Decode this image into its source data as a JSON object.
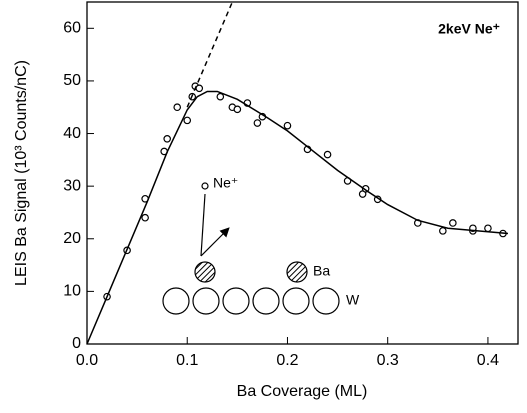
{
  "chart_data": {
    "type": "scatter",
    "x_label": "Ba Coverage (ML)",
    "y_label": "LEIS Ba Signal (10³ Counts/nC)",
    "annotations": [
      "2keV Ne⁺",
      "Ne⁺",
      "Ba",
      "W"
    ],
    "xlim": [
      0,
      0.43
    ],
    "xticks": [
      {
        "value": 0,
        "label": "0.0"
      },
      0.1,
      0.2,
      0.3,
      0.4
    ],
    "ylim": [
      0,
      65
    ],
    "yticks": [
      0,
      10,
      20,
      30,
      40,
      50,
      60
    ],
    "color": "#000000",
    "series": [
      {
        "style": "markers",
        "x": [
          0.02,
          0.04,
          0.058,
          0.058,
          0.077,
          0.08,
          0.09,
          0.1,
          0.105,
          0.108,
          0.112,
          0.133,
          0.145,
          0.15,
          0.16,
          0.17,
          0.175,
          0.2,
          0.22,
          0.24,
          0.26,
          0.275,
          0.278,
          0.29,
          0.33,
          0.355,
          0.365,
          0.385,
          0.385,
          0.4,
          0.415
        ],
        "values": [
          9,
          17.8,
          24,
          27.6,
          36.6,
          39,
          45,
          42.5,
          47,
          49,
          48.6,
          47,
          45,
          44.6,
          45.8,
          42,
          43.2,
          41.5,
          37,
          36,
          31,
          28.5,
          29.5,
          27.5,
          23,
          21.5,
          23,
          21.5,
          22,
          22,
          21
        ]
      },
      {
        "style": "line",
        "x": [
          0,
          0.02,
          0.04,
          0.06,
          0.08,
          0.1,
          0.11,
          0.12,
          0.13,
          0.15,
          0.18,
          0.2,
          0.22,
          0.25,
          0.28,
          0.3,
          0.33,
          0.36,
          0.39,
          0.42
        ],
        "values": [
          0,
          9,
          18,
          27,
          36.5,
          44.5,
          47,
          48,
          48,
          46.5,
          43,
          40.5,
          37.5,
          33,
          29,
          26.5,
          23.5,
          22,
          21.5,
          21
        ]
      },
      {
        "style": "dashed",
        "x": [
          0.1,
          0.145
        ],
        "values": [
          45,
          65
        ]
      }
    ]
  }
}
